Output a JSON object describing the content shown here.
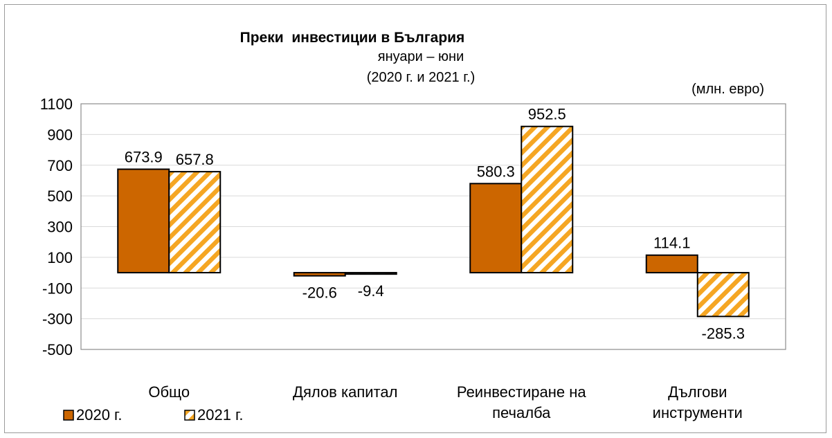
{
  "chart_data": {
    "type": "bar",
    "title": "Преки  инвестиции в България",
    "subtitle_line1": "януари – юни",
    "subtitle_line2": "(2020 г. и 2021 г.)",
    "unit_label": "(млн. евро)",
    "categories": [
      [
        "Общо"
      ],
      [
        "Дялов капитал"
      ],
      [
        "Реинвестиране на",
        "печалба"
      ],
      [
        "Дългови",
        "инструменти"
      ]
    ],
    "series": [
      {
        "name": "2020 г.",
        "values": [
          673.9,
          -20.6,
          580.3,
          114.1
        ],
        "labels": [
          "673.9",
          "-20.6",
          "580.3",
          "114.1"
        ],
        "color": "#cc6600",
        "pattern": "solid"
      },
      {
        "name": "2021 г.",
        "values": [
          657.8,
          -9.4,
          952.5,
          -285.3
        ],
        "labels": [
          "657.8",
          "-9.4",
          "952.5",
          "-285.3"
        ],
        "color": "#f5a623",
        "pattern": "diagonal-hatch"
      }
    ],
    "ylim": [
      -500,
      1100
    ],
    "yticks": [
      "1100",
      "900",
      "700",
      "500",
      "300",
      "100",
      "-100",
      "-300",
      "-500"
    ],
    "grid": true,
    "legend_position": "bottom-left",
    "baseline": 0
  }
}
